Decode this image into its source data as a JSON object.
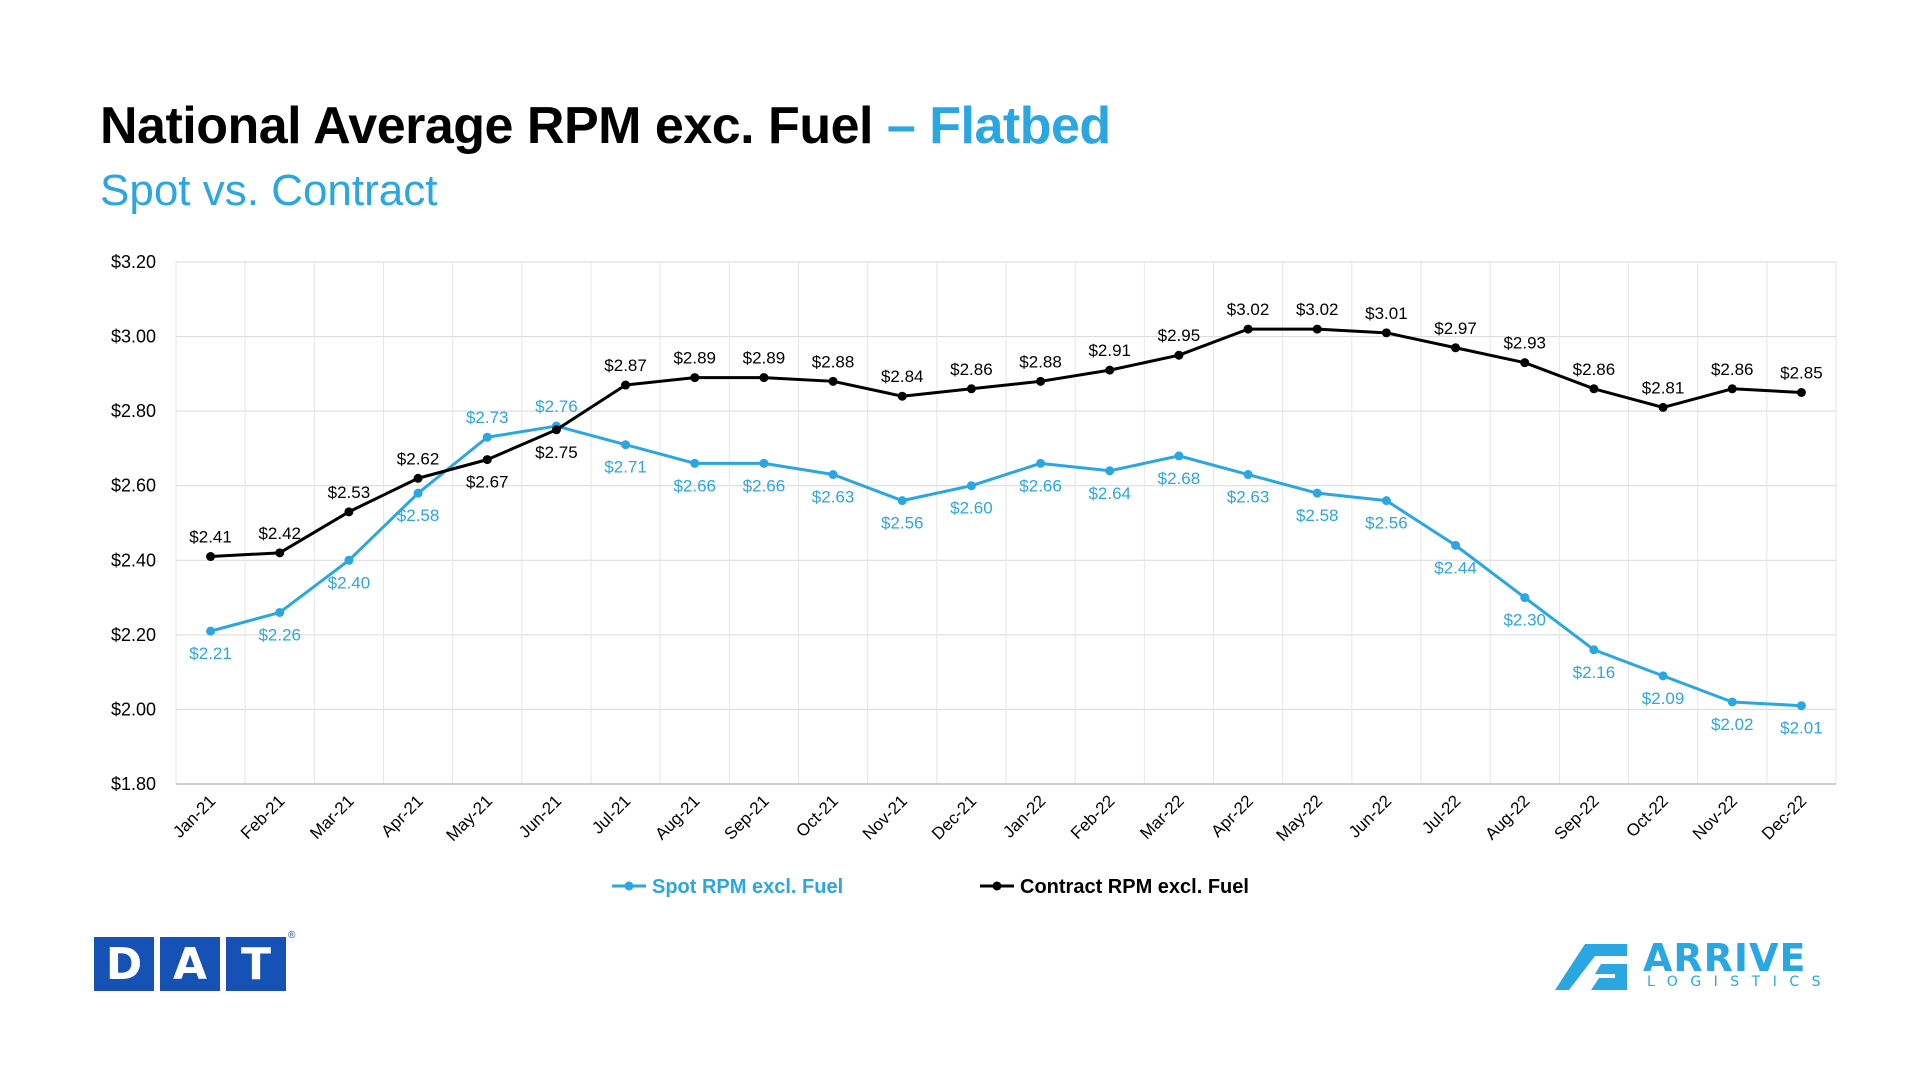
{
  "title": {
    "main": "National Average RPM exc. Fuel",
    "accent": "– Flatbed",
    "subtitle": "Spot vs. Contract"
  },
  "colors": {
    "spot": "#2aa7e1",
    "contract": "#000000",
    "dat": "#1652b5"
  },
  "chart_data": {
    "type": "line",
    "categories": [
      "Jan-21",
      "Feb-21",
      "Mar-21",
      "Apr-21",
      "May-21",
      "Jun-21",
      "Jul-21",
      "Aug-21",
      "Sep-21",
      "Oct-21",
      "Nov-21",
      "Dec-21",
      "Jan-22",
      "Feb-22",
      "Mar-22",
      "Apr-22",
      "May-22",
      "Jun-22",
      "Jul-22",
      "Aug-22",
      "Sep-22",
      "Oct-22",
      "Nov-22",
      "Dec-22"
    ],
    "series": [
      {
        "name": "Spot RPM excl. Fuel",
        "color": "#2aa7e1",
        "values": [
          2.21,
          2.26,
          2.4,
          2.58,
          2.73,
          2.76,
          2.71,
          2.66,
          2.66,
          2.63,
          2.56,
          2.6,
          2.66,
          2.64,
          2.68,
          2.63,
          2.58,
          2.56,
          2.44,
          2.3,
          2.16,
          2.09,
          2.02,
          2.01
        ],
        "labels": [
          "$2.21",
          "$2.26",
          "$2.40",
          "$2.58",
          "$2.73",
          "$2.76",
          "$2.71",
          "$2.66",
          "$2.66",
          "$2.63",
          "$2.56",
          "$2.60",
          "$2.66",
          "$2.64",
          "$2.68",
          "$2.63",
          "$2.58",
          "$2.56",
          "$2.44",
          "$2.30",
          "$2.16",
          "$2.09",
          "$2.02",
          "$2.01"
        ]
      },
      {
        "name": "Contract RPM excl. Fuel",
        "color": "#000000",
        "values": [
          2.41,
          2.42,
          2.53,
          2.62,
          2.67,
          2.75,
          2.87,
          2.89,
          2.89,
          2.88,
          2.84,
          2.86,
          2.88,
          2.91,
          2.95,
          3.02,
          3.02,
          3.01,
          2.97,
          2.93,
          2.86,
          2.81,
          2.86,
          2.85
        ],
        "labels": [
          "$2.41",
          "$2.42",
          "$2.53",
          "$2.62",
          "$2.67",
          "$2.75",
          "$2.87",
          "$2.89",
          "$2.89",
          "$2.88",
          "$2.84",
          "$2.86",
          "$2.88",
          "$2.91",
          "$2.95",
          "$3.02",
          "$3.02",
          "$3.01",
          "$2.97",
          "$2.93",
          "$2.86",
          "$2.81",
          "$2.86",
          "$2.85"
        ]
      }
    ],
    "ylim": [
      1.8,
      3.2
    ],
    "yticks": [
      1.8,
      2.0,
      2.2,
      2.4,
      2.6,
      2.8,
      3.0,
      3.2
    ],
    "ytick_labels": [
      "$1.80",
      "$2.00",
      "$2.20",
      "$2.40",
      "$2.60",
      "$2.80",
      "$3.00",
      "$3.20"
    ],
    "grid": true,
    "legend_position": "bottom"
  },
  "logos": {
    "dat": [
      "D",
      "A",
      "T"
    ],
    "dat_reg": "®",
    "arrive": "ARRIVE",
    "arrive_sub": "LOGISTICS"
  }
}
